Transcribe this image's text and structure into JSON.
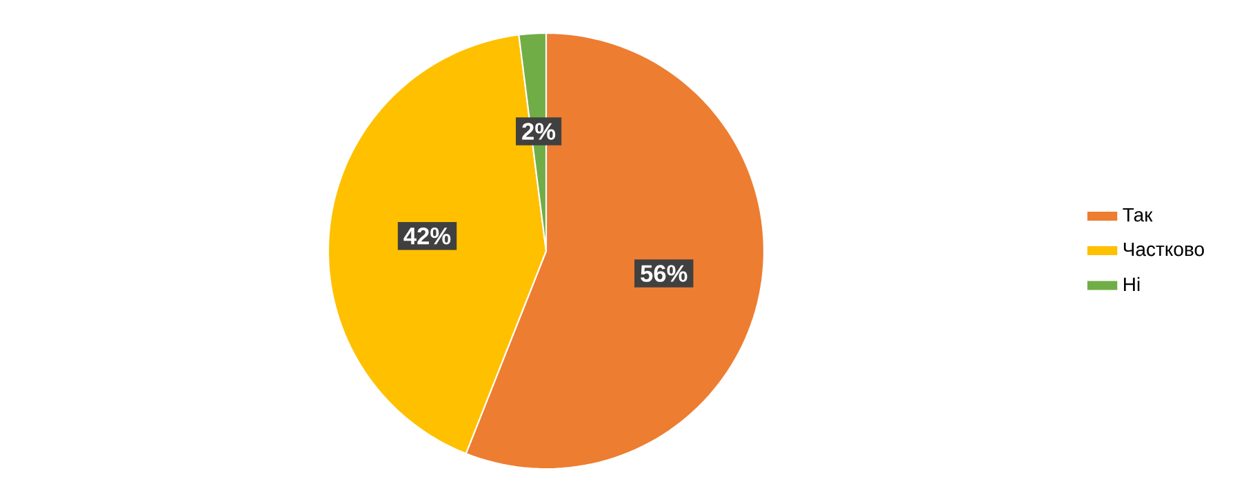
{
  "chart_data": {
    "type": "pie",
    "categories": [
      "Так",
      "Частково",
      "Ні"
    ],
    "values": [
      56,
      42,
      2
    ],
    "colors": [
      "#ed7d31",
      "#ffc000",
      "#70ad47"
    ],
    "value_labels": [
      "56%",
      "42%",
      "2%"
    ],
    "legend": "right"
  }
}
